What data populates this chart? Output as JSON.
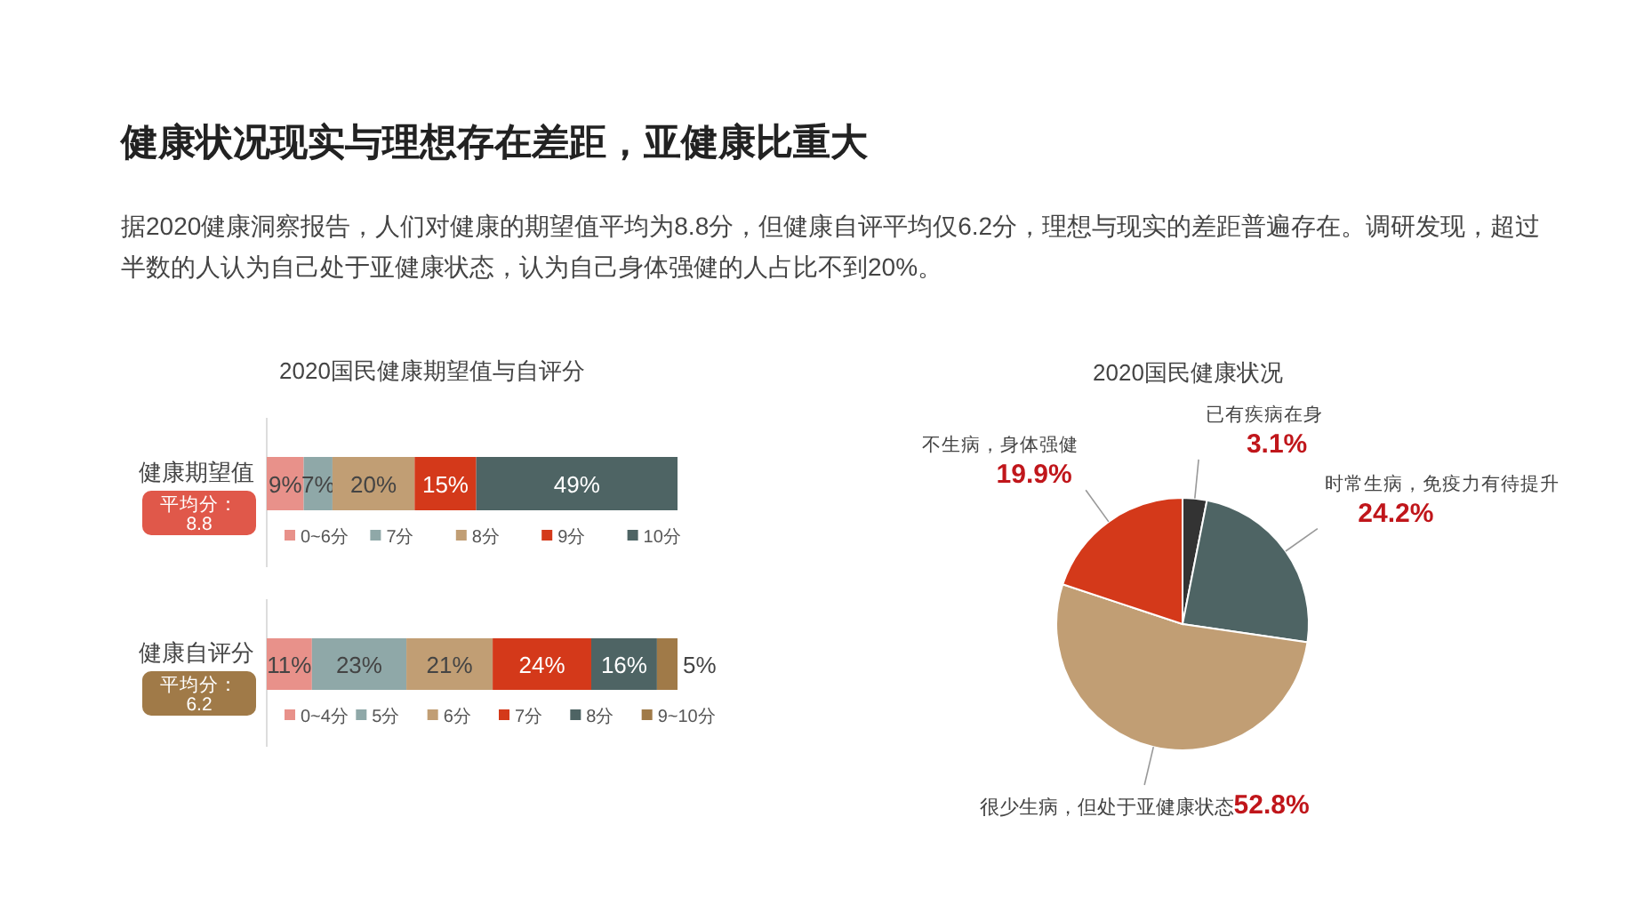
{
  "chart_data": [
    {
      "type": "other",
      "title": "健康状况现实与理想存在差距，亚健康比重大",
      "subtitle": "据2020健康洞察报告，人们对健康的期望值平均为8.8分，但健康自评平均仅6.2分，理想与现实的差距普遍存在。调研发现，超过半数的人认为自己处于亚健康状态，认为自己身体强健的人占比不到20%。"
    },
    {
      "type": "bar",
      "orientation": "horizontal",
      "stacked": true,
      "title": "2020国民健康期望值与自评分",
      "categories": [
        "健康期望值"
      ],
      "annotations": [
        "平均分：\n8.8"
      ],
      "legend": "bottom",
      "series": [
        {
          "name": "0~6分",
          "color": "#e8918a",
          "values": [
            9
          ],
          "value_labels": [
            "9%"
          ]
        },
        {
          "name": "7分",
          "color": "#8fa8a8",
          "values": [
            7
          ],
          "value_labels": [
            "7%"
          ]
        },
        {
          "name": "8分",
          "color": "#c19e74",
          "values": [
            20
          ],
          "value_labels": [
            "20%"
          ]
        },
        {
          "name": "9分",
          "color": "#d4391a",
          "values": [
            15
          ],
          "value_labels": [
            "15%"
          ]
        },
        {
          "name": "10分",
          "color": "#4e6464",
          "values": [
            49
          ],
          "value_labels": [
            "49%"
          ]
        }
      ]
    },
    {
      "type": "bar",
      "orientation": "horizontal",
      "stacked": true,
      "categories": [
        "健康自评分"
      ],
      "annotations": [
        "平均分：\n6.2"
      ],
      "legend": "bottom",
      "series": [
        {
          "name": "0~4分",
          "color": "#e8918a",
          "values": [
            11
          ],
          "value_labels": [
            "11%"
          ]
        },
        {
          "name": "5分",
          "color": "#8fa8a8",
          "values": [
            23
          ],
          "value_labels": [
            "23%"
          ]
        },
        {
          "name": "6分",
          "color": "#c19e74",
          "values": [
            21
          ],
          "value_labels": [
            "21%"
          ]
        },
        {
          "name": "7分",
          "color": "#d4391a",
          "values": [
            24
          ],
          "value_labels": [
            "24%"
          ]
        },
        {
          "name": "8分",
          "color": "#4e6464",
          "values": [
            16
          ],
          "value_labels": [
            "16%"
          ]
        },
        {
          "name": "9~10分",
          "color": "#a07a48",
          "values": [
            5
          ],
          "value_labels": [
            "5%"
          ]
        }
      ]
    },
    {
      "type": "pie",
      "title": "2020国民健康状况",
      "categories": [
        "已有疾病在身",
        "时常生病，免疫力有待提升",
        "很少生病，但处于亚健康状态",
        "不生病，身体强健"
      ],
      "values": [
        3.1,
        24.2,
        52.8,
        19.9
      ],
      "value_labels": [
        "3.1%",
        "24.2%",
        "52.8%",
        "19.9%"
      ],
      "colors": [
        "#333333",
        "#4e6464",
        "#c19e74",
        "#d4391a"
      ]
    }
  ]
}
